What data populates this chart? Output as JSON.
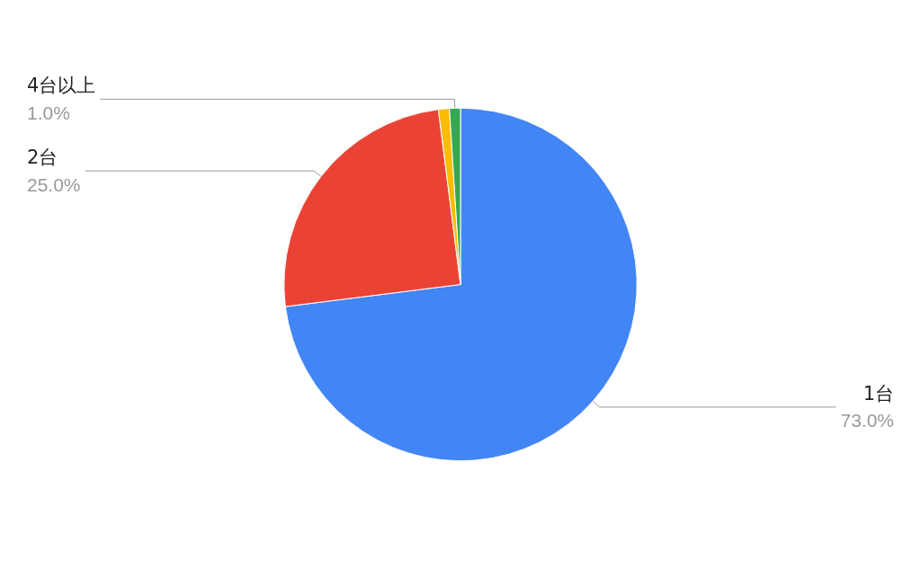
{
  "chart_data": {
    "type": "pie",
    "categories": [
      "1台",
      "2台",
      null,
      "4台以上"
    ],
    "values": [
      73,
      25,
      1,
      1
    ],
    "colors": [
      "#4285f4",
      "#ea4335",
      "#fbbc04",
      "#34a853"
    ],
    "value_labels": [
      "73.0%",
      "25.0%",
      null,
      "1.0%"
    ],
    "legend": false
  }
}
